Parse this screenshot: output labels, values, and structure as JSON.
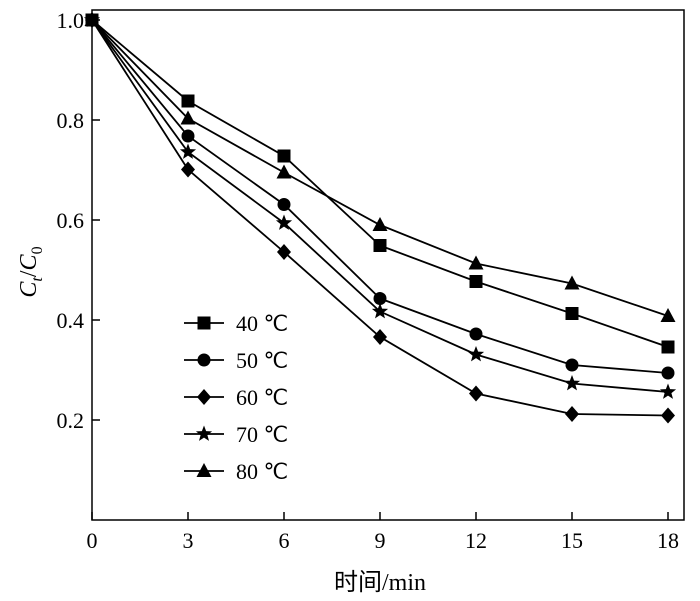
{
  "chart_data": {
    "type": "line",
    "xlabel": "时间/min",
    "ylabel": {
      "main": "C",
      "sub1": "t",
      "slash": "/",
      "main2": "C",
      "sub2": "0"
    },
    "x": [
      0,
      3,
      6,
      9,
      12,
      15,
      18
    ],
    "xticks": [
      "0",
      "3",
      "6",
      "9",
      "12",
      "15",
      "18"
    ],
    "yticks": [
      "0.2",
      "0.4",
      "0.6",
      "0.8",
      "1.0"
    ],
    "xlim": [
      0,
      18.5
    ],
    "ylim": [
      0,
      1.02
    ],
    "grid": false,
    "legend_position": "center-left",
    "series": [
      {
        "name": "40 ℃",
        "marker": "square",
        "values": [
          1.0,
          0.838,
          0.728,
          0.549,
          0.477,
          0.413,
          0.346
        ]
      },
      {
        "name": "50 ℃",
        "marker": "circle",
        "values": [
          1.0,
          0.768,
          0.631,
          0.443,
          0.372,
          0.31,
          0.294
        ]
      },
      {
        "name": "60 ℃",
        "marker": "diamond",
        "values": [
          1.0,
          0.701,
          0.536,
          0.366,
          0.253,
          0.212,
          0.209
        ]
      },
      {
        "name": "70 ℃",
        "marker": "star",
        "values": [
          1.0,
          0.736,
          0.594,
          0.417,
          0.331,
          0.273,
          0.256
        ]
      },
      {
        "name": "80 ℃",
        "marker": "triangle",
        "values": [
          1.0,
          0.803,
          0.695,
          0.59,
          0.513,
          0.473,
          0.408
        ]
      }
    ]
  }
}
